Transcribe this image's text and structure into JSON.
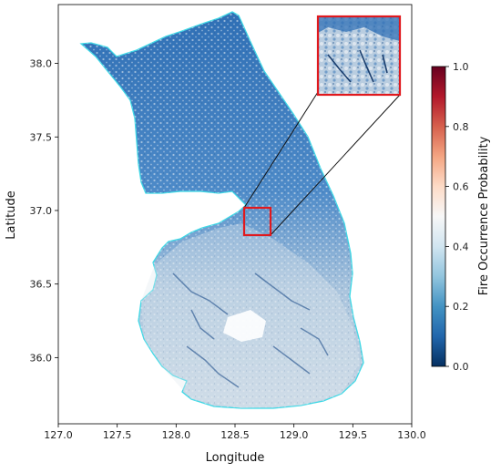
{
  "chart_data": {
    "type": "heatmap",
    "title": "",
    "xlabel": "Longitude",
    "ylabel": "Latitude",
    "xlim": [
      127.0,
      130.0
    ],
    "ylim": [
      35.55,
      38.4
    ],
    "x_ticks": [
      "127.0",
      "127.5",
      "128.0",
      "128.5",
      "129.0",
      "129.5",
      "130.0"
    ],
    "y_ticks": [
      "36.0",
      "36.5",
      "37.0",
      "37.5",
      "38.0"
    ],
    "colorbar": {
      "label": "Fire Occurrence Probability",
      "range": [
        0.0,
        1.0
      ],
      "ticks": [
        "0.0",
        "0.2",
        "0.4",
        "0.6",
        "0.8",
        "1.0"
      ],
      "colormap": "RdBu_r",
      "stops": [
        "#053061",
        "#2166ac",
        "#4393c3",
        "#92c5de",
        "#d1e5f0",
        "#f7f7f7",
        "#fddbc7",
        "#f4a582",
        "#d6604d",
        "#b2182b",
        "#67001f"
      ]
    },
    "inset": {
      "lon_range": [
        128.63,
        128.8
      ],
      "lat_range": [
        36.86,
        37.05
      ],
      "highlight_color": "#e0191e"
    },
    "boundary_color": "#3fd9e6"
  }
}
